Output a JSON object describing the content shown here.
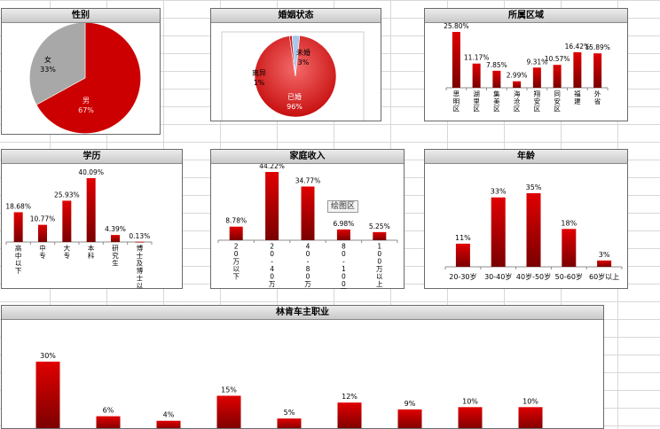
{
  "colors": {
    "bar_top": "#e00000",
    "bar_bottom": "#7a0000",
    "pie_red": "#cc0000",
    "pie_gray": "#a8a8a8"
  },
  "tooltip": "绘图区",
  "chart_data": [
    {
      "id": "gender",
      "type": "pie",
      "title": "性别",
      "slices": [
        {
          "label": "男",
          "pct": "67%",
          "value": 67
        },
        {
          "label": "女",
          "pct": "33%",
          "value": 33
        }
      ]
    },
    {
      "id": "marital",
      "type": "pie",
      "title": "婚姻状态",
      "slices": [
        {
          "label": "已婚",
          "pct": "96%",
          "value": 96
        },
        {
          "label": "离异",
          "pct": "1%",
          "value": 1
        },
        {
          "label": "未婚",
          "pct": "3%",
          "value": 3
        }
      ]
    },
    {
      "id": "region",
      "type": "bar",
      "title": "所属区域",
      "categories": [
        "思明区",
        "湖里区",
        "集美区",
        "海沧区",
        "翔安区",
        "同安区",
        "福建",
        "外省"
      ],
      "values": [
        25.8,
        11.17,
        7.85,
        2.99,
        9.31,
        10.57,
        16.42,
        15.89
      ],
      "labels": [
        "25.80%",
        "11.17%",
        "7.85%",
        "2.99%",
        "9.31%",
        "10.57%",
        "16.42%",
        "15.89%"
      ]
    },
    {
      "id": "education",
      "type": "bar",
      "title": "学历",
      "categories": [
        "高中以下",
        "中专",
        "大专",
        "本科",
        "研究生",
        "博士及博士以上"
      ],
      "values": [
        18.68,
        10.77,
        25.93,
        40.09,
        4.39,
        0.13
      ],
      "labels": [
        "18.68%",
        "10.77%",
        "25.93%",
        "40.09%",
        "4.39%",
        "0.13%"
      ]
    },
    {
      "id": "income",
      "type": "bar",
      "title": "家庭收入",
      "categories": [
        "20万以下",
        "20-40万",
        "40-80万",
        "80-100万",
        "100万以上"
      ],
      "values": [
        8.78,
        44.22,
        34.77,
        6.98,
        5.25
      ],
      "labels": [
        "8.78%",
        "44.22%",
        "34.77%",
        "6.98%",
        "5.25%"
      ]
    },
    {
      "id": "age",
      "type": "bar",
      "title": "年龄",
      "categories": [
        "20-30岁",
        "30-40岁",
        "40岁-50岁",
        "50-60岁",
        "60岁以上"
      ],
      "values": [
        11,
        33,
        35,
        18,
        3
      ],
      "labels": [
        "11%",
        "33%",
        "35%",
        "18%",
        "3%"
      ]
    },
    {
      "id": "occupation",
      "type": "bar",
      "title": "林肯车主职业",
      "categories": [
        "",
        "",
        "",
        "",
        "",
        "",
        "",
        "",
        ""
      ],
      "values": [
        30,
        6,
        4,
        15,
        5,
        12,
        9,
        10,
        10
      ],
      "labels": [
        "30%",
        "6%",
        "4%",
        "15%",
        "5%",
        "12%",
        "9%",
        "10%",
        "10%"
      ]
    }
  ]
}
